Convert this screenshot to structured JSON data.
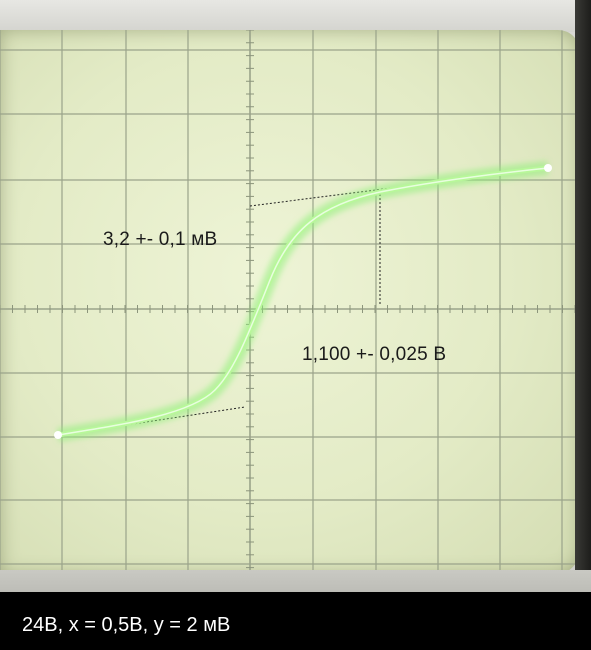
{
  "annotations": {
    "amplitude": "3,2 +- 0,1 мВ",
    "voltage": "1,100 +- 0,025 В"
  },
  "caption": "24В, х = 0,5В, у = 2 мВ",
  "colors": {
    "trace": "#9ef07a",
    "grid": "#9aa38a",
    "screen": "#e6edca"
  }
}
